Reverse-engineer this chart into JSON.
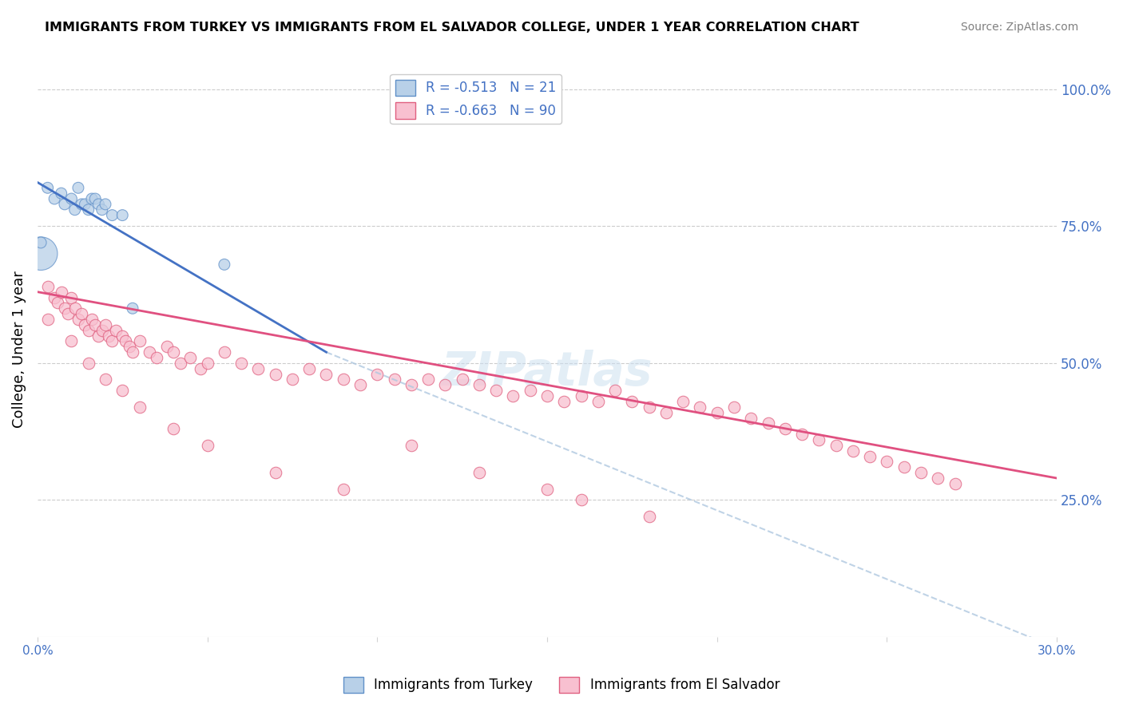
{
  "title": "IMMIGRANTS FROM TURKEY VS IMMIGRANTS FROM EL SALVADOR COLLEGE, UNDER 1 YEAR CORRELATION CHART",
  "source": "Source: ZipAtlas.com",
  "ylabel": "College, Under 1 year",
  "xmin": 0.0,
  "xmax": 0.3,
  "ymin": 0.0,
  "ymax": 1.05,
  "right_yticks": [
    1.0,
    0.75,
    0.5,
    0.25
  ],
  "right_yticklabels": [
    "100.0%",
    "75.0%",
    "50.0%",
    "25.0%"
  ],
  "legend_turkey_r": "-0.513",
  "legend_turkey_n": "21",
  "legend_salvador_r": "-0.663",
  "legend_salvador_n": "90",
  "turkey_color": "#b8d0e8",
  "turkey_edge_color": "#6090c8",
  "turkey_line_color": "#4472c4",
  "salvador_color": "#f8c0d0",
  "salvador_edge_color": "#e06080",
  "salvador_line_color": "#e05080",
  "dashed_line_color": "#b0c8e0",
  "watermark": "ZIPatlas",
  "grid_color": "#cccccc",
  "turkey_x": [
    0.003,
    0.005,
    0.007,
    0.008,
    0.01,
    0.011,
    0.012,
    0.013,
    0.014,
    0.015,
    0.016,
    0.017,
    0.018,
    0.019,
    0.02,
    0.022,
    0.025,
    0.028,
    0.001,
    0.001,
    0.055
  ],
  "turkey_y": [
    0.82,
    0.8,
    0.81,
    0.79,
    0.8,
    0.78,
    0.82,
    0.79,
    0.79,
    0.78,
    0.8,
    0.8,
    0.79,
    0.78,
    0.79,
    0.77,
    0.77,
    0.6,
    0.7,
    0.72,
    0.68
  ],
  "turkey_sizes": [
    100,
    100,
    100,
    100,
    100,
    100,
    100,
    100,
    100,
    100,
    100,
    100,
    100,
    100,
    100,
    100,
    100,
    100,
    900,
    100,
    100
  ],
  "salvador_x": [
    0.003,
    0.005,
    0.006,
    0.007,
    0.008,
    0.009,
    0.01,
    0.011,
    0.012,
    0.013,
    0.014,
    0.015,
    0.016,
    0.017,
    0.018,
    0.019,
    0.02,
    0.021,
    0.022,
    0.023,
    0.025,
    0.026,
    0.027,
    0.028,
    0.03,
    0.033,
    0.035,
    0.038,
    0.04,
    0.042,
    0.045,
    0.048,
    0.05,
    0.055,
    0.06,
    0.065,
    0.07,
    0.075,
    0.08,
    0.085,
    0.09,
    0.095,
    0.1,
    0.105,
    0.11,
    0.115,
    0.12,
    0.125,
    0.13,
    0.135,
    0.14,
    0.145,
    0.15,
    0.155,
    0.16,
    0.165,
    0.17,
    0.175,
    0.18,
    0.185,
    0.19,
    0.195,
    0.2,
    0.205,
    0.21,
    0.215,
    0.22,
    0.225,
    0.23,
    0.235,
    0.24,
    0.245,
    0.25,
    0.255,
    0.26,
    0.265,
    0.27,
    0.003,
    0.01,
    0.015,
    0.02,
    0.025,
    0.03,
    0.04,
    0.05,
    0.07,
    0.09,
    0.11,
    0.13,
    0.15,
    0.16,
    0.18
  ],
  "salvador_y": [
    0.64,
    0.62,
    0.61,
    0.63,
    0.6,
    0.59,
    0.62,
    0.6,
    0.58,
    0.59,
    0.57,
    0.56,
    0.58,
    0.57,
    0.55,
    0.56,
    0.57,
    0.55,
    0.54,
    0.56,
    0.55,
    0.54,
    0.53,
    0.52,
    0.54,
    0.52,
    0.51,
    0.53,
    0.52,
    0.5,
    0.51,
    0.49,
    0.5,
    0.52,
    0.5,
    0.49,
    0.48,
    0.47,
    0.49,
    0.48,
    0.47,
    0.46,
    0.48,
    0.47,
    0.46,
    0.47,
    0.46,
    0.47,
    0.46,
    0.45,
    0.44,
    0.45,
    0.44,
    0.43,
    0.44,
    0.43,
    0.45,
    0.43,
    0.42,
    0.41,
    0.43,
    0.42,
    0.41,
    0.42,
    0.4,
    0.39,
    0.38,
    0.37,
    0.36,
    0.35,
    0.34,
    0.33,
    0.32,
    0.31,
    0.3,
    0.29,
    0.28,
    0.58,
    0.54,
    0.5,
    0.47,
    0.45,
    0.42,
    0.38,
    0.35,
    0.3,
    0.27,
    0.35,
    0.3,
    0.27,
    0.25,
    0.22
  ],
  "turkey_line_x0": 0.0,
  "turkey_line_x1": 0.085,
  "turkey_line_y0": 0.83,
  "turkey_line_y1": 0.52,
  "salvador_line_x0": 0.0,
  "salvador_line_x1": 0.3,
  "salvador_line_y0": 0.63,
  "salvador_line_y1": 0.29,
  "dash_line_x0": 0.085,
  "dash_line_x1": 0.3,
  "dash_line_y0": 0.52,
  "dash_line_y1": -0.02
}
